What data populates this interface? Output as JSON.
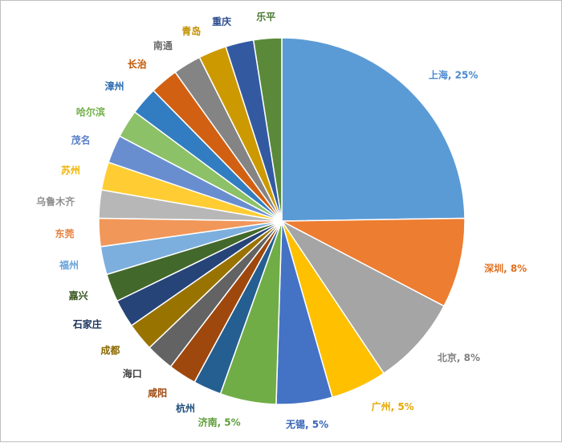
{
  "chart_data": {
    "type": "pie",
    "slices": [
      {
        "label": "上海",
        "value": 25,
        "display": "上海, 25%",
        "color": "#5b9bd5"
      },
      {
        "label": "深圳",
        "value": 8,
        "display": "深圳, 8%",
        "color": "#ed7d31"
      },
      {
        "label": "北京",
        "value": 8,
        "display": "北京, 8%",
        "color": "#a5a5a5"
      },
      {
        "label": "广州",
        "value": 5,
        "display": "广州, 5%",
        "color": "#ffc000"
      },
      {
        "label": "无锡",
        "value": 5,
        "display": "无锡, 5%",
        "color": "#4472c4"
      },
      {
        "label": "济南",
        "value": 5,
        "display": "济南, 5%",
        "color": "#70ad47"
      },
      {
        "label": "杭州",
        "value": 2.5,
        "display": "杭州",
        "color": "#255e91"
      },
      {
        "label": "咸阳",
        "value": 2.5,
        "display": "咸阳",
        "color": "#9e480e"
      },
      {
        "label": "海口",
        "value": 2.5,
        "display": "海口",
        "color": "#636363"
      },
      {
        "label": "成都",
        "value": 2.5,
        "display": "成都",
        "color": "#997300"
      },
      {
        "label": "石家庄",
        "value": 2.5,
        "display": "石家庄",
        "color": "#264478"
      },
      {
        "label": "嘉兴",
        "value": 2.5,
        "display": "嘉兴",
        "color": "#43682b"
      },
      {
        "label": "福州",
        "value": 2.5,
        "display": "福州",
        "color": "#7cafdd"
      },
      {
        "label": "东莞",
        "value": 2.5,
        "display": "东莞",
        "color": "#f1975a"
      },
      {
        "label": "乌鲁木齐",
        "value": 2.5,
        "display": "乌鲁木齐",
        "color": "#b7b7b7"
      },
      {
        "label": "苏州",
        "value": 2.5,
        "display": "苏州",
        "color": "#ffcd33"
      },
      {
        "label": "茂名",
        "value": 2.5,
        "display": "茂名",
        "color": "#698ed0"
      },
      {
        "label": "哈尔滨",
        "value": 2.5,
        "display": "哈尔滨",
        "color": "#8cc168"
      },
      {
        "label": "漳州",
        "value": 2.5,
        "display": "漳州",
        "color": "#327dc2"
      },
      {
        "label": "长治",
        "value": 2.5,
        "display": "长治",
        "color": "#d26012"
      },
      {
        "label": "南通",
        "value": 2.5,
        "display": "南通",
        "color": "#848484"
      },
      {
        "label": "青岛",
        "value": 2.5,
        "display": "青岛",
        "color": "#cc9a00"
      },
      {
        "label": "重庆",
        "value": 2.5,
        "display": "重庆",
        "color": "#335aa1"
      },
      {
        "label": "乐平",
        "value": 2.5,
        "display": "乐平",
        "color": "#5a8a39"
      }
    ],
    "label_colors": {
      "上海": "#4a8bcf",
      "深圳": "#e0701f",
      "北京": "#808080",
      "广州": "#e6a800",
      "无锡": "#3a66b8",
      "济南": "#5e9e38",
      "杭州": "#1f4f7c",
      "咸阳": "#9e480e",
      "海口": "#404040",
      "成都": "#8a6800",
      "石家庄": "#1c355e",
      "嘉兴": "#36561f",
      "福州": "#6aa3d8",
      "东莞": "#e8803e",
      "乌鲁木齐": "#909090",
      "苏州": "#f2b400",
      "茂名": "#5a80c8",
      "哈尔滨": "#72b04a",
      "漳州": "#2a6cb0",
      "长治": "#c05500",
      "南通": "#6b6b6b",
      "青岛": "#c09000",
      "重庆": "#2e4f90",
      "乐平": "#4a7a30"
    }
  }
}
